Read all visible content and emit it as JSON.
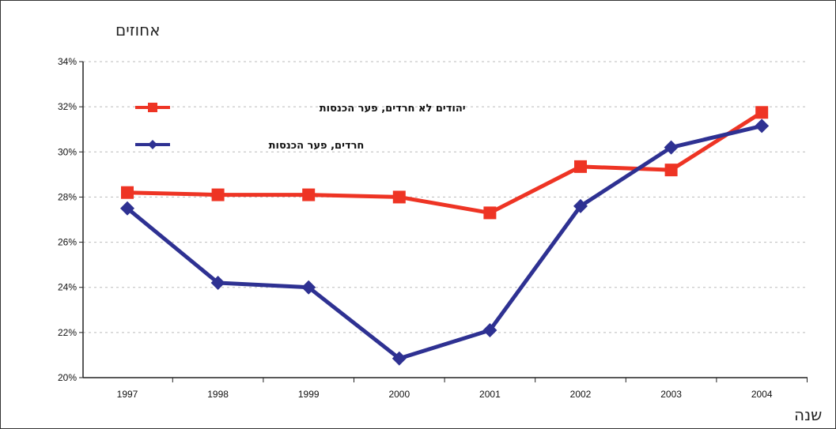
{
  "chart_data": {
    "type": "line",
    "ylabel": "אחוזים",
    "xlabel": "שנה",
    "x": [
      "1997",
      "1998",
      "1999",
      "2000",
      "2001",
      "2002",
      "2003",
      "2004"
    ],
    "ylim": [
      20,
      34
    ],
    "yticks": [
      20,
      22,
      24,
      26,
      28,
      30,
      32,
      34
    ],
    "ytick_labels": [
      "20%",
      "22%",
      "24%",
      "26%",
      "28%",
      "30%",
      "32%",
      "34%"
    ],
    "grid": true,
    "legend_position": "top-left",
    "series": [
      {
        "name": "יהודים לא חרדים, פער הכנסות",
        "color": "#ee3424",
        "marker": "square",
        "values": [
          28.2,
          28.1,
          28.1,
          28.0,
          27.3,
          29.35,
          29.2,
          31.75
        ]
      },
      {
        "name": "חרדים, פער הכנסות",
        "color": "#2e3192",
        "marker": "diamond",
        "values": [
          27.5,
          24.2,
          24.0,
          20.85,
          22.1,
          27.6,
          30.2,
          31.15
        ]
      }
    ]
  }
}
